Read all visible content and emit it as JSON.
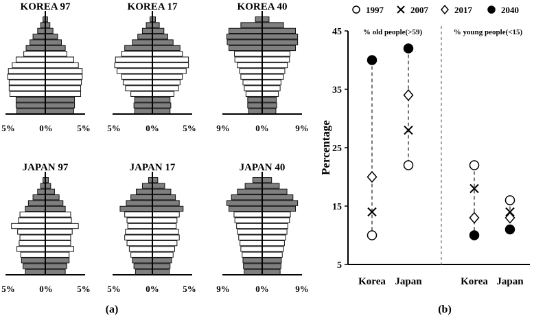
{
  "panel_labels": {
    "a": "(a)",
    "b": "(b)"
  },
  "chart_data": [
    {
      "type": "bar",
      "subtype": "population-pyramid",
      "title": "KOREA 97",
      "tick_labels": [
        "5%",
        "0%",
        "5%"
      ],
      "xlim": [
        -5,
        5
      ],
      "bands": [
        {
          "left": 3.7,
          "right": 3.7,
          "shade": "gray"
        },
        {
          "left": 3.8,
          "right": 3.8,
          "shade": "gray"
        },
        {
          "left": 3.8,
          "right": 3.8,
          "shade": "gray"
        },
        {
          "left": 4.6,
          "right": 4.6,
          "shade": "white"
        },
        {
          "left": 4.7,
          "right": 4.6,
          "shade": "white"
        },
        {
          "left": 4.7,
          "right": 4.7,
          "shade": "white"
        },
        {
          "left": 4.9,
          "right": 4.8,
          "shade": "white"
        },
        {
          "left": 4.8,
          "right": 4.8,
          "shade": "white"
        },
        {
          "left": 4.3,
          "right": 4.3,
          "shade": "white"
        },
        {
          "left": 3.8,
          "right": 3.7,
          "shade": "white"
        },
        {
          "left": 2.8,
          "right": 2.8,
          "shade": "white"
        },
        {
          "left": 2.5,
          "right": 2.6,
          "shade": "gray"
        },
        {
          "left": 2.0,
          "right": 2.1,
          "shade": "gray"
        },
        {
          "left": 1.6,
          "right": 1.6,
          "shade": "gray"
        },
        {
          "left": 1.0,
          "right": 1.0,
          "shade": "gray"
        },
        {
          "left": 0.6,
          "right": 0.6,
          "shade": "gray"
        },
        {
          "left": 0.3,
          "right": 0.3,
          "shade": "gray"
        }
      ]
    },
    {
      "type": "bar",
      "subtype": "population-pyramid",
      "title": "KOREA 17",
      "tick_labels": [
        "5%",
        "0%",
        "5%"
      ],
      "xlim": [
        -5,
        5
      ],
      "bands": [
        {
          "left": 2.3,
          "right": 2.3,
          "shade": "gray"
        },
        {
          "left": 2.4,
          "right": 2.4,
          "shade": "gray"
        },
        {
          "left": 2.3,
          "right": 2.3,
          "shade": "gray"
        },
        {
          "left": 2.8,
          "right": 2.8,
          "shade": "white"
        },
        {
          "left": 3.5,
          "right": 3.4,
          "shade": "white"
        },
        {
          "left": 3.8,
          "right": 3.6,
          "shade": "white"
        },
        {
          "left": 4.0,
          "right": 3.9,
          "shade": "white"
        },
        {
          "left": 4.6,
          "right": 4.4,
          "shade": "white"
        },
        {
          "left": 4.9,
          "right": 4.7,
          "shade": "white"
        },
        {
          "left": 4.8,
          "right": 4.7,
          "shade": "white"
        },
        {
          "left": 4.0,
          "right": 3.9,
          "shade": "white"
        },
        {
          "left": 3.6,
          "right": 3.6,
          "shade": "gray"
        },
        {
          "left": 2.6,
          "right": 2.7,
          "shade": "gray"
        },
        {
          "left": 1.9,
          "right": 2.0,
          "shade": "gray"
        },
        {
          "left": 1.3,
          "right": 1.5,
          "shade": "gray"
        },
        {
          "left": 0.8,
          "right": 0.9,
          "shade": "gray"
        },
        {
          "left": 0.3,
          "right": 0.4,
          "shade": "gray"
        }
      ]
    },
    {
      "type": "bar",
      "subtype": "population-pyramid",
      "title": "KOREA 40",
      "tick_labels": [
        "9%",
        "0%",
        "9%"
      ],
      "xlim": [
        -9,
        9
      ],
      "bands": [
        {
          "left": 3.2,
          "right": 3.2,
          "shade": "gray"
        },
        {
          "left": 3.4,
          "right": 3.4,
          "shade": "gray"
        },
        {
          "left": 3.4,
          "right": 3.3,
          "shade": "gray"
        },
        {
          "left": 3.8,
          "right": 3.8,
          "shade": "white"
        },
        {
          "left": 4.2,
          "right": 4.2,
          "shade": "white"
        },
        {
          "left": 4.5,
          "right": 4.4,
          "shade": "white"
        },
        {
          "left": 5.0,
          "right": 5.0,
          "shade": "white"
        },
        {
          "left": 5.3,
          "right": 5.3,
          "shade": "white"
        },
        {
          "left": 5.8,
          "right": 5.9,
          "shade": "white"
        },
        {
          "left": 6.4,
          "right": 6.4,
          "shade": "white"
        },
        {
          "left": 6.5,
          "right": 6.5,
          "shade": "white"
        },
        {
          "left": 7.8,
          "right": 7.8,
          "shade": "gray"
        },
        {
          "left": 8.2,
          "right": 8.3,
          "shade": "gray"
        },
        {
          "left": 8.3,
          "right": 8.3,
          "shade": "gray"
        },
        {
          "left": 7.8,
          "right": 7.8,
          "shade": "gray"
        },
        {
          "left": 5.0,
          "right": 5.0,
          "shade": "gray"
        },
        {
          "left": 1.6,
          "right": 1.6,
          "shade": "gray"
        }
      ]
    },
    {
      "type": "bar",
      "subtype": "population-pyramid",
      "title": "JAPAN 97",
      "tick_labels": [
        "5%",
        "0%",
        "5%"
      ],
      "xlim": [
        -5,
        5
      ],
      "bands": [
        {
          "left": 2.6,
          "right": 2.6,
          "shade": "gray"
        },
        {
          "left": 2.9,
          "right": 2.8,
          "shade": "gray"
        },
        {
          "left": 3.1,
          "right": 3.1,
          "shade": "gray"
        },
        {
          "left": 3.2,
          "right": 3.1,
          "shade": "white"
        },
        {
          "left": 3.7,
          "right": 3.7,
          "shade": "white"
        },
        {
          "left": 3.4,
          "right": 3.3,
          "shade": "white"
        },
        {
          "left": 3.3,
          "right": 3.3,
          "shade": "white"
        },
        {
          "left": 3.6,
          "right": 3.5,
          "shade": "white"
        },
        {
          "left": 4.4,
          "right": 4.3,
          "shade": "white"
        },
        {
          "left": 3.5,
          "right": 3.4,
          "shade": "white"
        },
        {
          "left": 3.3,
          "right": 3.3,
          "shade": "white"
        },
        {
          "left": 2.6,
          "right": 2.6,
          "shade": "gray"
        },
        {
          "left": 2.2,
          "right": 2.3,
          "shade": "gray"
        },
        {
          "left": 1.6,
          "right": 1.8,
          "shade": "gray"
        },
        {
          "left": 1.0,
          "right": 1.2,
          "shade": "gray"
        },
        {
          "left": 0.6,
          "right": 0.7,
          "shade": "gray"
        },
        {
          "left": 0.3,
          "right": 0.4,
          "shade": "gray"
        }
      ]
    },
    {
      "type": "bar",
      "subtype": "population-pyramid",
      "title": "JAPAN 17",
      "tick_labels": [
        "5%",
        "0%",
        "5%"
      ],
      "xlim": [
        -5,
        5
      ],
      "bands": [
        {
          "left": 2.2,
          "right": 2.2,
          "shade": "gray"
        },
        {
          "left": 2.4,
          "right": 2.3,
          "shade": "gray"
        },
        {
          "left": 2.6,
          "right": 2.5,
          "shade": "gray"
        },
        {
          "left": 2.8,
          "right": 2.7,
          "shade": "white"
        },
        {
          "left": 3.0,
          "right": 2.9,
          "shade": "white"
        },
        {
          "left": 3.3,
          "right": 3.2,
          "shade": "white"
        },
        {
          "left": 3.6,
          "right": 3.5,
          "shade": "white"
        },
        {
          "left": 3.5,
          "right": 3.4,
          "shade": "white"
        },
        {
          "left": 3.2,
          "right": 3.1,
          "shade": "white"
        },
        {
          "left": 3.3,
          "right": 3.2,
          "shade": "white"
        },
        {
          "left": 3.6,
          "right": 3.5,
          "shade": "white"
        },
        {
          "left": 4.2,
          "right": 4.0,
          "shade": "gray"
        },
        {
          "left": 3.4,
          "right": 3.5,
          "shade": "gray"
        },
        {
          "left": 2.8,
          "right": 3.0,
          "shade": "gray"
        },
        {
          "left": 2.1,
          "right": 2.4,
          "shade": "gray"
        },
        {
          "left": 1.3,
          "right": 1.6,
          "shade": "gray"
        },
        {
          "left": 0.5,
          "right": 0.7,
          "shade": "gray"
        }
      ]
    },
    {
      "type": "bar",
      "subtype": "population-pyramid",
      "title": "JAPAN 40",
      "tick_labels": [
        "9%",
        "0%",
        "9%"
      ],
      "xlim": [
        -9,
        9
      ],
      "bands": [
        {
          "left": 4.2,
          "right": 4.2,
          "shade": "gray"
        },
        {
          "left": 4.4,
          "right": 4.4,
          "shade": "gray"
        },
        {
          "left": 4.5,
          "right": 4.5,
          "shade": "gray"
        },
        {
          "left": 4.7,
          "right": 4.7,
          "shade": "white"
        },
        {
          "left": 5.0,
          "right": 5.0,
          "shade": "white"
        },
        {
          "left": 5.2,
          "right": 5.2,
          "shade": "white"
        },
        {
          "left": 5.5,
          "right": 5.5,
          "shade": "white"
        },
        {
          "left": 5.8,
          "right": 5.8,
          "shade": "white"
        },
        {
          "left": 6.0,
          "right": 6.0,
          "shade": "white"
        },
        {
          "left": 6.4,
          "right": 6.4,
          "shade": "white"
        },
        {
          "left": 6.6,
          "right": 6.6,
          "shade": "white"
        },
        {
          "left": 7.8,
          "right": 7.8,
          "shade": "gray"
        },
        {
          "left": 8.3,
          "right": 8.3,
          "shade": "gray"
        },
        {
          "left": 7.2,
          "right": 7.2,
          "shade": "gray"
        },
        {
          "left": 5.8,
          "right": 5.8,
          "shade": "gray"
        },
        {
          "left": 4.0,
          "right": 4.0,
          "shade": "gray"
        },
        {
          "left": 2.2,
          "right": 2.2,
          "shade": "gray"
        }
      ]
    },
    {
      "type": "scatter",
      "ylabel": "Percentage",
      "ylim": [
        5,
        45
      ],
      "yticks": [
        5,
        15,
        25,
        35,
        45
      ],
      "group_labels": [
        "% old people(>59)",
        "% young people(<15)"
      ],
      "categories": [
        "Korea",
        "Japan",
        "Korea",
        "Japan"
      ],
      "series": [
        {
          "name": "1997",
          "marker": "open-circle",
          "values": [
            10,
            22,
            22,
            16
          ]
        },
        {
          "name": "2007",
          "marker": "x",
          "values": [
            14,
            28,
            18,
            14
          ]
        },
        {
          "name": "2017",
          "marker": "open-diamond",
          "values": [
            20,
            34,
            13,
            13
          ]
        },
        {
          "name": "2040",
          "marker": "filled-circle",
          "values": [
            40,
            42,
            10,
            11
          ]
        }
      ],
      "legend_position": "top"
    }
  ]
}
